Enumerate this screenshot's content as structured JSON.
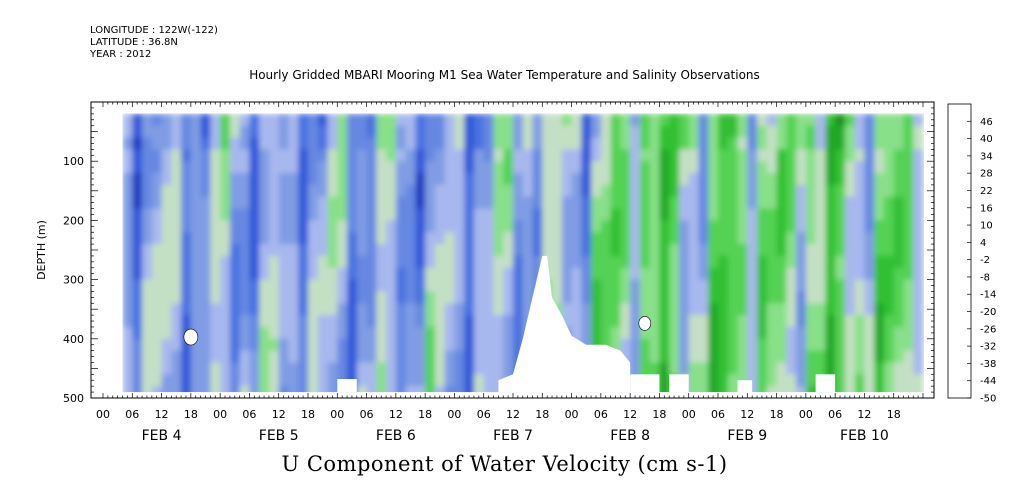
{
  "header": {
    "longitude": "LONGITUDE : 122W(-122)",
    "latitude": "LATITUDE : 36.8N",
    "year": "YEAR : 2012"
  },
  "chart_data": {
    "type": "heatmap",
    "title": "Hourly Gridded MBARI Mooring M1 Sea Water Temperature and Salinity Observations",
    "caption": "U Component of Water Velocity (cm s-1)",
    "ylabel": "DEPTH (m)",
    "ylim": [
      500,
      0
    ],
    "y_inverted": true,
    "y_ticks": [
      100,
      200,
      300,
      400,
      500
    ],
    "y_tick_labels": [
      "100",
      "200",
      "300",
      "400",
      "500"
    ],
    "x_hour_ticks": [
      "00",
      "06",
      "12",
      "18",
      "00",
      "06",
      "12",
      "18",
      "00",
      "06",
      "12",
      "18",
      "00",
      "06",
      "12",
      "18",
      "00",
      "06",
      "12",
      "18",
      "00",
      "06",
      "12",
      "18",
      "00",
      "06",
      "12",
      "18"
    ],
    "x_day_labels": [
      "FEB  4",
      "FEB  5",
      "FEB  6",
      "FEB  7",
      "FEB  8",
      "FEB  9",
      "FEB 10"
    ],
    "x_range_days": [
      "FEB 4 00",
      "FEB 10 24"
    ],
    "data_start": "FEB 4 04",
    "data_end": "FEB 10 24",
    "depth_range": [
      20,
      490
    ],
    "colorbar": {
      "levels": [
        -50,
        -44,
        -38,
        -32,
        -26,
        -20,
        -14,
        -8,
        -2,
        4,
        10,
        16,
        22,
        28,
        34,
        40,
        46
      ],
      "labels": [
        "46",
        "40",
        "34",
        "28",
        "22",
        "16",
        "10",
        "4",
        "-2",
        "-8",
        "-14",
        "-20",
        "-26",
        "-32",
        "-38",
        "-44",
        "-50"
      ],
      "colors": [
        "#00004a",
        "#0a1a8c",
        "#1e3cc0",
        "#3058d8",
        "#4a72e0",
        "#6688e2",
        "#7f9ce4",
        "#a7b8ee",
        "#c4e0c4",
        "#88e088",
        "#52d252",
        "#30c030",
        "#22a828",
        "#1c9024",
        "#16781e",
        "#105e18",
        "#0a4a10"
      ]
    },
    "description_regions": {
      "early_period": "FEB 4 - FEB 7 mostly negative (blue) with vertical green bands",
      "late_period": "FEB 8 - FEB 10 mostly positive (green)",
      "blanks": "missing data below ~260 m near FEB 7 12-18 and patches near 460-490 m"
    }
  }
}
